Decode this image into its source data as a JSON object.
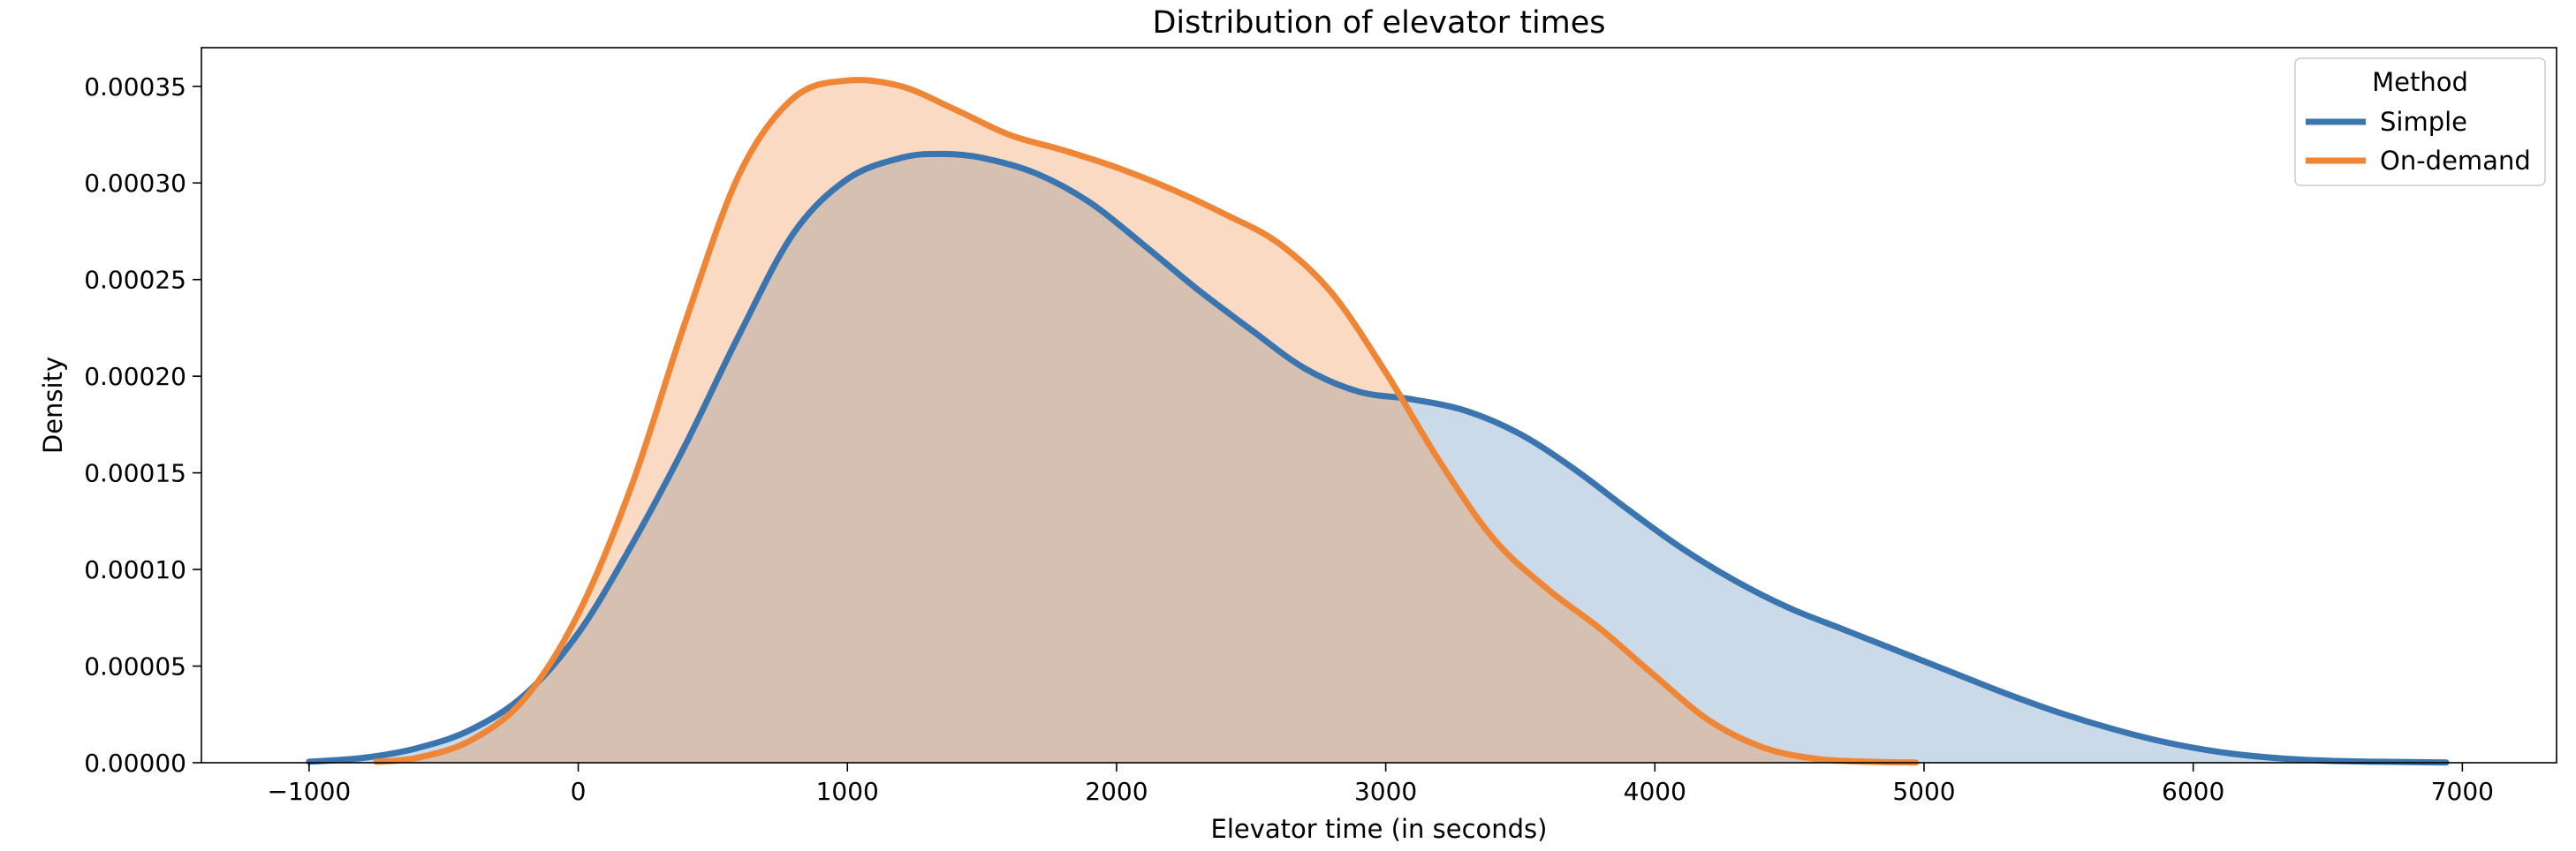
{
  "chart_data": {
    "type": "area",
    "title": "Distribution of elevator times",
    "xlabel": "Elevator time (in seconds)",
    "ylabel": "Density",
    "xlim": [
      -1400,
      7350
    ],
    "ylim": [
      0,
      0.00037
    ],
    "xticks": [
      -1000,
      0,
      1000,
      2000,
      3000,
      4000,
      5000,
      6000,
      7000
    ],
    "xtick_labels": [
      "−1000",
      "0",
      "1000",
      "2000",
      "3000",
      "4000",
      "5000",
      "6000",
      "7000"
    ],
    "yticks": [
      0,
      5e-05,
      0.0001,
      0.00015,
      0.0002,
      0.00025,
      0.0003,
      0.00035
    ],
    "ytick_labels": [
      "0.00000",
      "0.00005",
      "0.00010",
      "0.00015",
      "0.00020",
      "0.00025",
      "0.00030",
      "0.00035"
    ],
    "grid": false,
    "legend": {
      "title": "Method",
      "placement": "top-right"
    },
    "series": [
      {
        "name": "Simple",
        "color": "#3b75af",
        "fill": "#c8dbeb",
        "x": [
          -1000,
          -800,
          -600,
          -400,
          -200,
          0,
          200,
          400,
          600,
          800,
          1000,
          1200,
          1350,
          1500,
          1700,
          1900,
          2100,
          2300,
          2500,
          2700,
          2900,
          3100,
          3300,
          3500,
          3700,
          3900,
          4100,
          4300,
          4500,
          4700,
          4900,
          5100,
          5300,
          5500,
          5700,
          5900,
          6100,
          6300,
          6500,
          6700,
          6940
        ],
        "y": [
          5e-07,
          2.5e-06,
          7.5e-06,
          1.7e-05,
          3.5e-05,
          6.7e-05,
          0.000113,
          0.000165,
          0.000222,
          0.000274,
          0.000302,
          0.000313,
          0.000315,
          0.000313,
          0.000305,
          0.00029,
          0.000268,
          0.000245,
          0.000224,
          0.000204,
          0.000192,
          0.000188,
          0.000182,
          0.00017,
          0.000152,
          0.000131,
          0.000111,
          9.4e-05,
          8e-05,
          6.9e-05,
          5.8e-05,
          4.7e-05,
          3.6e-05,
          2.6e-05,
          1.75e-05,
          1.05e-05,
          5.5e-06,
          2.5e-06,
          1e-06,
          5e-07,
          1e-07
        ]
      },
      {
        "name": "On-demand",
        "color": "#ef8636",
        "fill": "#f8d7bd",
        "x": [
          -750,
          -600,
          -400,
          -200,
          0,
          200,
          400,
          600,
          800,
          1000,
          1200,
          1400,
          1600,
          1800,
          2000,
          2200,
          2400,
          2600,
          2800,
          3000,
          3200,
          3400,
          3600,
          3800,
          4000,
          4200,
          4400,
          4600,
          4800,
          4970
        ],
        "y": [
          5e-07,
          2.5e-06,
          1.15e-05,
          3.3e-05,
          7.7e-05,
          0.000144,
          0.000229,
          0.000305,
          0.000344,
          0.000353,
          0.00035,
          0.000338,
          0.000325,
          0.000317,
          0.000308,
          0.000297,
          0.000284,
          0.000269,
          0.000243,
          0.000202,
          0.000156,
          0.000116,
          9e-05,
          6.9e-05,
          4.5e-05,
          2.2e-05,
          8e-06,
          2e-06,
          5e-07,
          1e-07
        ]
      }
    ]
  }
}
